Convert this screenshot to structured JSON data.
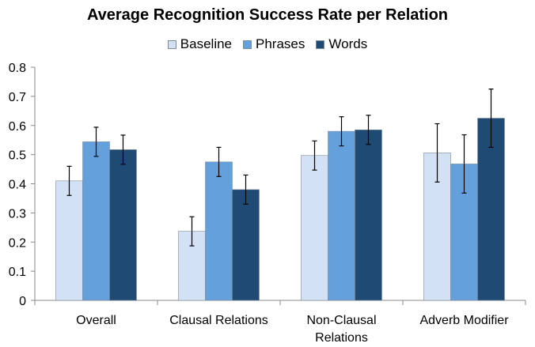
{
  "chart_data": {
    "type": "bar",
    "title": "Average Recognition Success Rate per Relation",
    "xlabel": "",
    "ylabel": "",
    "ylim": [
      0,
      0.8
    ],
    "yticks": [
      "0",
      "0.1",
      "0.2",
      "0.3",
      "0.4",
      "0.5",
      "0.6",
      "0.7",
      "0.8"
    ],
    "categories": [
      [
        "Overall"
      ],
      [
        "Clausal Relations"
      ],
      [
        "Non-Clausal",
        "Relations"
      ],
      [
        "Adverb Modifier"
      ]
    ],
    "series": [
      {
        "name": "Baseline",
        "color": "#d3e1f5",
        "values": [
          0.41,
          0.237,
          0.497,
          0.506
        ],
        "errors": [
          0.05,
          0.05,
          0.05,
          0.1
        ]
      },
      {
        "name": "Phrases",
        "color": "#63a0dc",
        "values": [
          0.544,
          0.475,
          0.58,
          0.468
        ],
        "errors": [
          0.05,
          0.05,
          0.05,
          0.1
        ]
      },
      {
        "name": "Words",
        "color": "#1f4a73",
        "values": [
          0.517,
          0.38,
          0.585,
          0.625
        ],
        "errors": [
          0.05,
          0.05,
          0.05,
          0.1
        ]
      }
    ],
    "error_bars": true,
    "grid": false,
    "legend_position": "top"
  }
}
